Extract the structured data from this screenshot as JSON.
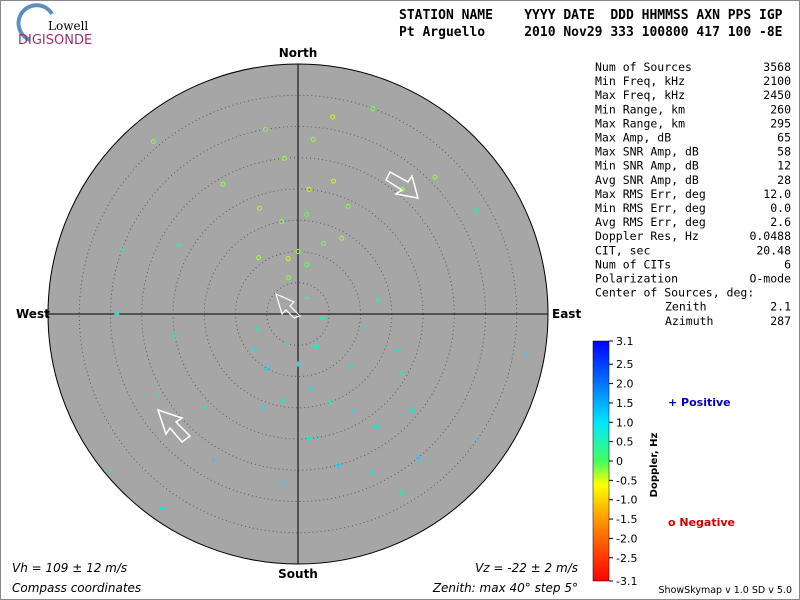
{
  "header": {
    "logo_top": "Lowell",
    "logo_bottom": "DIGISONDE",
    "line1": "STATION NAME    YYYY DATE  DDD HHMMSS AXN PPS IGP",
    "line2": "Pt Arguello     2010 Nov29 333 100800 417 100 -8E"
  },
  "stats": [
    [
      "Num of Sources",
      "3568"
    ],
    [
      "Min Freq, kHz",
      "2100"
    ],
    [
      "Max Freq, kHz",
      "2450"
    ],
    [
      "Min Range, km",
      "260"
    ],
    [
      "Max Range, km",
      "295"
    ],
    [
      "Max Amp, dB",
      "65"
    ],
    [
      "Max SNR Amp, dB",
      "58"
    ],
    [
      "Min SNR Amp, dB",
      "12"
    ],
    [
      "Avg SNR Amp, dB",
      "28"
    ],
    [
      "Max RMS Err, deg",
      "12.0"
    ],
    [
      "Min RMS Err, deg",
      "0.0"
    ],
    [
      "Avg RMS Err, deg",
      "2.6"
    ],
    [
      "Doppler Res, Hz",
      "0.0488"
    ],
    [
      "CIT, sec",
      "20.48"
    ],
    [
      "Num of CITs",
      "6"
    ],
    [
      "Polarization",
      "O-mode"
    ],
    [
      "Center of Sources, deg:",
      ""
    ],
    [
      "Zenith",
      "2.1"
    ],
    [
      "Azimuth",
      "287"
    ]
  ],
  "footer": {
    "vh": "Vh = 109 ± 12 m/s",
    "vz": "Vz = -22 ± 2 m/s",
    "coords": "Compass coordinates",
    "zenith": "Zenith: max 40°  step 5°",
    "version": "ShowSkymap v 1.0   SD v 5.0"
  },
  "chart_data": {
    "type": "skymap",
    "directions": {
      "north": "North",
      "south": "South",
      "west": "West",
      "east": "East"
    },
    "zenith_max": 40,
    "zenith_step": 5,
    "zenith": [
      10,
      15,
      20,
      25,
      12,
      18,
      8,
      22,
      28,
      30,
      6,
      14,
      16,
      24,
      32,
      35,
      26,
      11,
      19,
      9,
      5,
      8,
      12,
      15,
      10,
      18,
      20,
      14,
      22,
      25,
      28,
      6,
      16,
      24,
      30,
      12,
      19,
      9,
      27,
      33,
      4,
      7,
      3,
      17,
      21,
      35,
      38,
      26,
      30,
      22,
      33,
      29,
      37,
      13,
      36,
      31,
      39,
      20,
      11,
      27
    ],
    "azimuth": [
      0,
      350,
      5,
      355,
      20,
      340,
      10,
      15,
      5,
      350,
      345,
      30,
      5,
      330,
      10,
      20,
      40,
      325,
      25,
      350,
      200,
      180,
      170,
      160,
      210,
      150,
      175,
      190,
      145,
      165,
      155,
      150,
      200,
      130,
      140,
      135,
      120,
      230,
      185,
      150,
      100,
      250,
      30,
      110,
      225,
      125,
      215,
      240,
      290,
      300,
      60,
      270,
      100,
      80,
      320,
      45,
      230,
      260,
      100,
      210
    ],
    "doppler": [
      -0.3,
      -0.2,
      -0.4,
      -0.3,
      -0.2,
      -0.3,
      -0.1,
      -0.4,
      -0.3,
      -0.2,
      -0.2,
      -0.3,
      -0.1,
      -0.3,
      -0.4,
      -0.2,
      -0.3,
      -0.3,
      -0.2,
      -0.4,
      0.8,
      1.0,
      0.9,
      0.7,
      1.1,
      0.8,
      1.0,
      0.6,
      0.9,
      1.2,
      0.8,
      0.7,
      1.0,
      0.9,
      1.1,
      0.8,
      0.6,
      0.9,
      1.0,
      0.7,
      0.5,
      0.6,
      0.2,
      0.9,
      0.8,
      1.0,
      0.9,
      0.7,
      0.6,
      0.5,
      0.6,
      0.8,
      1.0,
      0.5,
      -0.2,
      -0.3,
      0.6,
      0.7,
      0.8,
      1.1
    ],
    "colorbar": {
      "label": "Doppler, Hz",
      "ticks": [
        3.1,
        2.5,
        {
          "value": 2,
          "label": "2.0"
        },
        1.5,
        {
          "value": 1,
          "label": "1.0"
        },
        0.5,
        0,
        -0.5,
        {
          "value": -1,
          "label": "-1.0"
        },
        -1.5,
        {
          "value": -2,
          "label": "-2.0"
        },
        -2.5,
        -3.1
      ]
    },
    "legend": {
      "positive": "+ Positive",
      "negative": "o Negative"
    }
  }
}
